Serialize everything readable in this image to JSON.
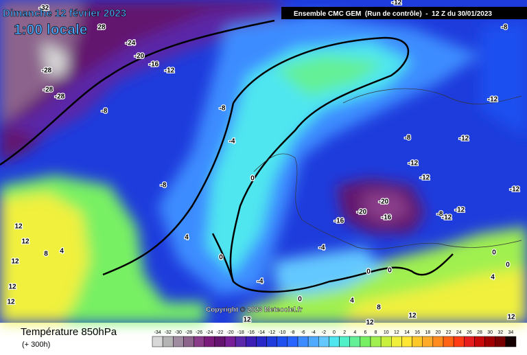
{
  "header": {
    "date": "Dimanche 12 février 2023",
    "time": "1:00 locale",
    "model": "Ensemble CMC GEM  (Run de contrôle)  -  12 Z du 30/01/2023",
    "copyright": "Copyright © 2023 Meteociel.fr"
  },
  "footer": {
    "title": "Température 850hPa",
    "lead": "(+ 300h)"
  },
  "legend": {
    "values": [
      -34,
      -32,
      -30,
      -28,
      -26,
      -24,
      -22,
      -20,
      -18,
      -16,
      -14,
      -12,
      -10,
      -8,
      -6,
      -4,
      -2,
      0,
      2,
      4,
      6,
      8,
      10,
      12,
      14,
      16,
      18,
      20,
      22,
      24,
      26,
      28,
      30,
      32,
      34
    ],
    "colors": [
      "#d8d8d8",
      "#b4b4b4",
      "#a08ca0",
      "#8c648c",
      "#8a3c8a",
      "#7a1a7a",
      "#64146e",
      "#781e96",
      "#5a28a8",
      "#3c1eb4",
      "#2828c8",
      "#1e3cdc",
      "#1e50f0",
      "#2864ff",
      "#3c8cff",
      "#50aaff",
      "#64c8ff",
      "#50e6f0",
      "#50f0c8",
      "#64f096",
      "#78f064",
      "#a0f050",
      "#c8f03c",
      "#f0f03c",
      "#ffe632",
      "#ffc828",
      "#ffaa28",
      "#ff8c1e",
      "#ff6414",
      "#ff3c14",
      "#e61e1e",
      "#c80a0a",
      "#a00000",
      "#780000",
      "#140000"
    ]
  },
  "map": {
    "contour_labels": [
      -32,
      28,
      -24,
      -20,
      -16,
      -12,
      -28,
      -28,
      -28,
      -8,
      -8,
      -4,
      -8,
      0,
      4,
      0,
      -4,
      -12,
      -8,
      -12,
      -12,
      -12,
      -12,
      -20,
      -20,
      -16,
      -16,
      -8,
      -12,
      -12,
      -4,
      0,
      0,
      4,
      8,
      12,
      12,
      12,
      0,
      12,
      12,
      12,
      8,
      4,
      12,
      12,
      0,
      0,
      4,
      -8,
      12,
      -12
    ]
  }
}
